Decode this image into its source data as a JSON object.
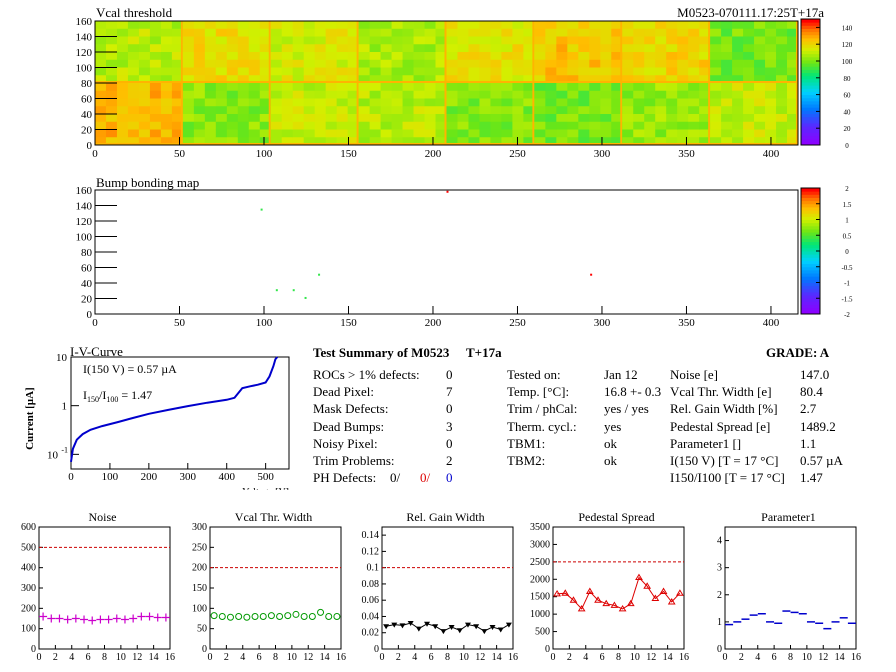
{
  "vcal_map": {
    "title": "Vcal threshold",
    "module_label": "M0523-070111.17:25T+17a",
    "x_ticks": [
      "0",
      "50",
      "100",
      "150",
      "200",
      "250",
      "300",
      "350",
      "400"
    ],
    "y_ticks": [
      "0",
      "20",
      "40",
      "60",
      "80",
      "100",
      "120",
      "140",
      "160"
    ],
    "colorbar_ticks": [
      "0",
      "20",
      "40",
      "60",
      "80",
      "100",
      "120",
      "140"
    ],
    "chart_data": {
      "type": "heatmap",
      "xlim": [
        0,
        416
      ],
      "ylim": [
        0,
        160
      ],
      "zlim": [
        0,
        150
      ],
      "roc_grid_columns": 8,
      "roc_grid_rows": 2,
      "roc_mean_threshold_top": [
        110,
        120,
        115,
        108,
        118,
        125,
        122,
        100
      ],
      "roc_mean_threshold_bottom": [
        128,
        103,
        112,
        110,
        102,
        100,
        105,
        112
      ]
    }
  },
  "bump_map": {
    "title": "Bump bonding map",
    "x_ticks": [
      "0",
      "50",
      "100",
      "150",
      "200",
      "250",
      "300",
      "350",
      "400"
    ],
    "y_ticks": [
      "0",
      "20",
      "40",
      "60",
      "80",
      "100",
      "120",
      "140",
      "160"
    ],
    "colorbar_ticks": [
      "-2",
      "-1.5",
      "-1",
      "-0.5",
      "0",
      "0.5",
      "1",
      "1.5",
      "2"
    ],
    "chart_data": {
      "type": "heatmap",
      "xlim": [
        0,
        416
      ],
      "ylim": [
        0,
        160
      ],
      "zlim": [
        -2,
        2
      ],
      "hits": [
        {
          "x": 208,
          "y": 159,
          "v": 2
        },
        {
          "x": 98,
          "y": 136,
          "v": 0.4
        },
        {
          "x": 132,
          "y": 52,
          "v": 0.4
        },
        {
          "x": 107,
          "y": 32,
          "v": 0.4
        },
        {
          "x": 117,
          "y": 32,
          "v": 0.4
        },
        {
          "x": 124,
          "y": 22,
          "v": 0.4
        },
        {
          "x": 293,
          "y": 52,
          "v": 2
        }
      ]
    }
  },
  "iv_curve": {
    "title": "I-V-Curve",
    "i150": "I(150 V) = 0.57 µA",
    "ratio_label": "I",
    "ratio_sub1": "150",
    "ratio_slash": "/I",
    "ratio_sub2": "100",
    "ratio_value": "=  1.47",
    "xlabel": "Voltage [V]",
    "ylabel": "Current [µA]",
    "x_ticks": [
      "0",
      "100",
      "200",
      "300",
      "400",
      "500"
    ],
    "y_tick_main": [
      "10",
      "1",
      "10"
    ],
    "y_tick_exp": [
      "",
      "",
      "-1"
    ],
    "chart_data": {
      "type": "line",
      "xlim": [
        0,
        560
      ],
      "ylim": [
        0.05,
        10
      ],
      "log_y": true,
      "x": [
        0,
        5,
        15,
        30,
        50,
        80,
        120,
        160,
        200,
        250,
        300,
        350,
        400,
        420,
        440,
        460,
        480,
        500,
        510,
        520,
        525,
        530
      ],
      "y": [
        0.07,
        0.13,
        0.2,
        0.26,
        0.32,
        0.38,
        0.46,
        0.56,
        0.68,
        0.82,
        0.98,
        1.15,
        1.32,
        1.45,
        2.3,
        2.5,
        2.7,
        3.0,
        4.0,
        6.5,
        9.0,
        11.0
      ]
    }
  },
  "summary": {
    "title": "Test Summary of M0523",
    "tag": "T+17a",
    "grade": "GRADE:  A",
    "left_labels": [
      "ROCs > 1% defects:",
      "Dead Pixel:",
      "Mask Defects:",
      "Dead Bumps:",
      "Noisy Pixel:",
      "Trim Problems:"
    ],
    "left_values": [
      "0",
      "7",
      "0",
      "3",
      "0",
      "2"
    ],
    "ph_label": "PH Defects:",
    "ph_values": [
      "0/",
      "0/",
      "0"
    ],
    "ph_colors": [
      "#000000",
      "#dd0000",
      "#0000cc"
    ],
    "mid_labels": [
      "Tested on:",
      "Temp. [°C]:",
      "Trim / phCal:",
      "Therm. cycl.:",
      "TBM1:",
      "TBM2:"
    ],
    "mid_values": [
      "Jan 12",
      "16.8 +- 0.3",
      "yes / yes",
      "yes",
      "ok",
      "ok"
    ],
    "right_labels": [
      "Noise [e]",
      "Vcal Thr. Width [e]",
      "Rel. Gain Width [%]",
      "Pedestal Spread [e]",
      "Parameter1 []",
      "I(150 V) [T = 17 °C]",
      "I150/I100  [T = 17 °C]"
    ],
    "right_values": [
      "147.0",
      "80.4",
      "2.7",
      "1489.2",
      "1.1",
      "0.57 µA",
      "1.47"
    ]
  },
  "chart_data": [
    {
      "type": "scatter",
      "title": "Noise",
      "x": [
        0,
        1,
        2,
        3,
        4,
        5,
        6,
        7,
        8,
        9,
        10,
        11,
        12,
        13,
        14,
        15
      ],
      "values": [
        160,
        150,
        150,
        145,
        150,
        145,
        140,
        145,
        145,
        150,
        145,
        150,
        160,
        160,
        155,
        155
      ],
      "ylim": [
        0,
        600
      ],
      "threshold": 500,
      "y_ticks": [
        "0",
        "100",
        "200",
        "300",
        "400",
        "500",
        "600"
      ],
      "color": "#cc00cc",
      "marker": "cross"
    },
    {
      "type": "scatter",
      "title": "Vcal Thr. Width",
      "x": [
        0,
        1,
        2,
        3,
        4,
        5,
        6,
        7,
        8,
        9,
        10,
        11,
        12,
        13,
        14,
        15
      ],
      "values": [
        82,
        80,
        78,
        80,
        78,
        80,
        80,
        82,
        80,
        82,
        85,
        80,
        80,
        90,
        80,
        80
      ],
      "ylim": [
        0,
        300
      ],
      "threshold": 200,
      "y_ticks": [
        "0",
        "50",
        "100",
        "150",
        "200",
        "250",
        "300"
      ],
      "color": "#009900",
      "marker": "circle"
    },
    {
      "type": "line",
      "title": "Rel. Gain Width",
      "x": [
        0,
        1,
        2,
        3,
        4,
        5,
        6,
        7,
        8,
        9,
        10,
        11,
        12,
        13,
        14,
        15
      ],
      "values": [
        0.028,
        0.03,
        0.029,
        0.032,
        0.025,
        0.031,
        0.028,
        0.022,
        0.027,
        0.023,
        0.03,
        0.028,
        0.022,
        0.027,
        0.024,
        0.03
      ],
      "ylim": [
        0,
        0.15
      ],
      "threshold": 0.1,
      "y_ticks": [
        "0",
        "0.02",
        "0.04",
        "0.06",
        "0.08",
        "0.1",
        "0.12",
        "0.14"
      ],
      "color": "#000000",
      "marker": "triangle-down"
    },
    {
      "type": "line",
      "title": "Pedestal Spread",
      "x": [
        0,
        1,
        2,
        3,
        4,
        5,
        6,
        7,
        8,
        9,
        10,
        11,
        12,
        13,
        14,
        15
      ],
      "values": [
        1580,
        1600,
        1400,
        1150,
        1650,
        1400,
        1300,
        1250,
        1150,
        1300,
        2050,
        1800,
        1450,
        1650,
        1350,
        1600
      ],
      "ylim": [
        0,
        3500
      ],
      "threshold": 2500,
      "y_ticks": [
        "0",
        "500",
        "1000",
        "1500",
        "2000",
        "2500",
        "3000",
        "3500"
      ],
      "color": "#dd0000",
      "marker": "triangle-up"
    },
    {
      "type": "scatter",
      "title": "Parameter1",
      "x": [
        0,
        1,
        2,
        3,
        4,
        5,
        6,
        7,
        8,
        9,
        10,
        11,
        12,
        13,
        14,
        15
      ],
      "values": [
        0.9,
        1.0,
        1.1,
        1.25,
        1.3,
        1.0,
        0.95,
        1.4,
        1.35,
        1.3,
        1.0,
        0.95,
        0.75,
        1.0,
        1.15,
        0.95
      ],
      "ylim": [
        0,
        4.5
      ],
      "threshold": null,
      "y_ticks": [
        "0",
        "1",
        "2",
        "3",
        "4"
      ],
      "color": "#0000cc",
      "marker": "hbar"
    }
  ],
  "small_x_ticks": [
    "0",
    "2",
    "4",
    "6",
    "8",
    "10",
    "12",
    "14",
    "16"
  ]
}
